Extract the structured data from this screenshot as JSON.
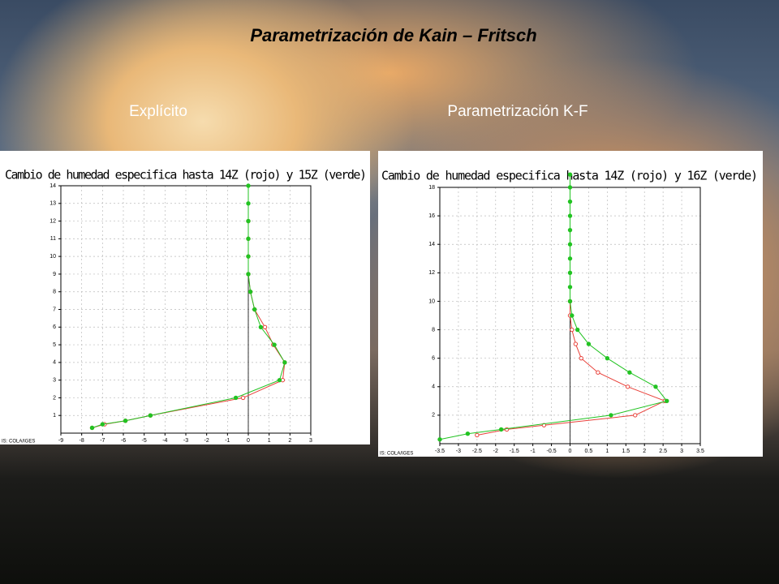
{
  "slide": {
    "title": "Parametrización de Kain – Fritsch",
    "labels": [
      "Explícito",
      "Parametrización K-F"
    ]
  },
  "chart_data": [
    {
      "type": "line",
      "title": "Cambio de humedad especifica hasta 14Z (rojo) y 15Z (verde)",
      "credit": "IS: COLA/IGES",
      "xlim": [
        -9,
        3
      ],
      "xticks": [
        -9,
        -8,
        -7,
        -6,
        -5,
        -4,
        -3,
        -2,
        -1,
        0,
        1,
        2,
        3
      ],
      "ylim": [
        0,
        14
      ],
      "yticks": [
        1,
        2,
        3,
        4,
        5,
        6,
        7,
        8,
        9,
        10,
        11,
        12,
        13,
        14
      ],
      "grid": true,
      "series": [
        {
          "color": "#e8413a",
          "marker": "open",
          "x": [
            -7.5,
            -6.9,
            -5.9,
            -4.7,
            -0.25,
            1.65,
            1.75,
            1.2,
            0.8,
            0.3,
            0.1,
            0,
            0,
            0,
            0
          ],
          "y": [
            0.3,
            0.5,
            0.7,
            1,
            2,
            3,
            4,
            5,
            6,
            7,
            8,
            9,
            10,
            11,
            12
          ]
        },
        {
          "color": "#22c322",
          "marker": "filled",
          "x": [
            -7.5,
            -7,
            -5.9,
            -4.7,
            -0.6,
            1.5,
            1.75,
            1.25,
            0.6,
            0.3,
            0.1,
            0,
            0,
            0,
            0,
            0,
            0
          ],
          "y": [
            0.3,
            0.5,
            0.7,
            1,
            2,
            3,
            4,
            5,
            6,
            7,
            8,
            9,
            10,
            11,
            12,
            13,
            14
          ]
        }
      ]
    },
    {
      "type": "line",
      "title": "Cambio de humedad especifica hasta 14Z (rojo) y 16Z (verde)",
      "credit": "IS: COLA/IGES",
      "xlim": [
        -3.5,
        3.5
      ],
      "xticks": [
        -3.5,
        -3,
        -2.5,
        -2,
        -1.5,
        -1,
        -0.5,
        0,
        0.5,
        1,
        1.5,
        2,
        2.5,
        3,
        3.5
      ],
      "ylim": [
        0,
        18
      ],
      "yticks": [
        2,
        4,
        6,
        8,
        10,
        12,
        14,
        16,
        18
      ],
      "grid": true,
      "series": [
        {
          "color": "#e8413a",
          "marker": "open",
          "x": [
            -2.5,
            -1.7,
            -0.7,
            1.75,
            2.55,
            1.55,
            0.75,
            0.3,
            0.15,
            0.05,
            0,
            0
          ],
          "y": [
            0.6,
            1,
            1.3,
            2,
            3,
            4,
            5,
            6,
            7,
            8,
            9,
            10
          ]
        },
        {
          "color": "#22c322",
          "marker": "filled",
          "x": [
            -3.5,
            -2.75,
            -1.85,
            1.1,
            2.6,
            2.3,
            1.6,
            1,
            0.5,
            0.2,
            0.05,
            0,
            0,
            0,
            0,
            0,
            0,
            0,
            0,
            0,
            0
          ],
          "y": [
            0.3,
            0.7,
            1,
            2,
            3,
            4,
            5,
            6,
            7,
            8,
            9,
            10,
            11,
            12,
            13,
            14,
            15,
            16,
            17,
            18,
            18.9
          ]
        }
      ]
    }
  ]
}
